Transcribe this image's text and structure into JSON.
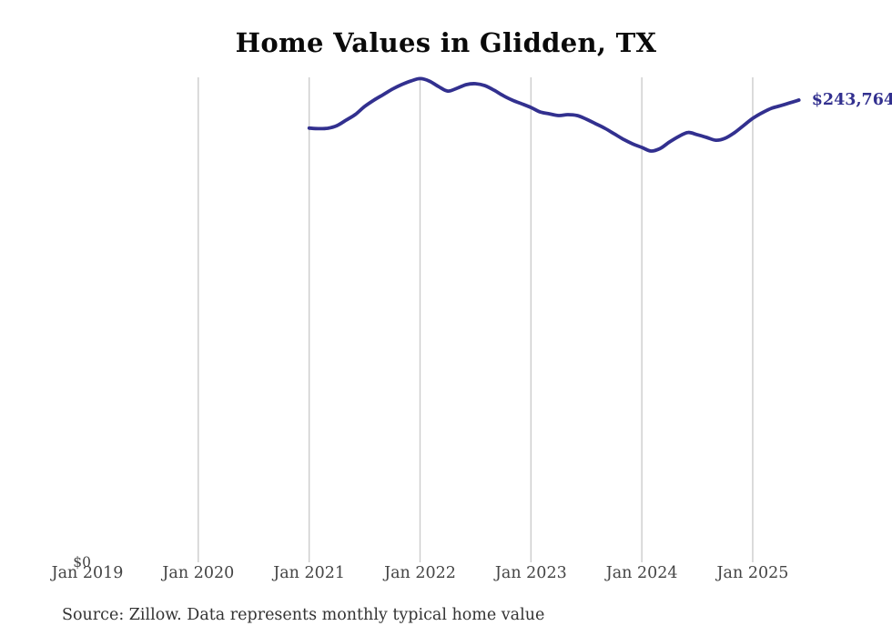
{
  "chart": {
    "title": "Home Values in Glidden, TX",
    "source": "Source: Zillow. Data represents monthly typical home value",
    "end_label": "$243,764",
    "y_axis": {
      "zero_label": "$0"
    },
    "colors": {
      "line": "#32308f",
      "end_label": "#32308f",
      "grid": "#cccccc",
      "title": "#0a0a0a",
      "axis_text": "#444444",
      "source_text": "#333333",
      "background": "#ffffff"
    }
  },
  "chart_data": {
    "type": "line",
    "title": "Home Values in Glidden, TX",
    "xlabel": "",
    "ylabel": "",
    "ylim": [
      0,
      260000
    ],
    "grid": "vertical-only",
    "legend": "none",
    "x_ticks": [
      {
        "label": "Jan 2019",
        "gridline": false
      },
      {
        "label": "Jan 2020",
        "gridline": true
      },
      {
        "label": "Jan 2021",
        "gridline": true
      },
      {
        "label": "Jan 2022",
        "gridline": true
      },
      {
        "label": "Jan 2023",
        "gridline": true
      },
      {
        "label": "Jan 2024",
        "gridline": true
      },
      {
        "label": "Jan 2025",
        "gridline": true
      }
    ],
    "annotations": [
      {
        "text": "$243,764",
        "attach": "last-point"
      },
      {
        "text": "$0",
        "attach": "y-axis-zero"
      }
    ],
    "series": [
      {
        "name": "Monthly typical home value",
        "points": [
          [
            "2021-01",
            229000
          ],
          [
            "2021-02",
            228700
          ],
          [
            "2021-03",
            228900
          ],
          [
            "2021-04",
            230300
          ],
          [
            "2021-05",
            233200
          ],
          [
            "2021-06",
            236200
          ],
          [
            "2021-07",
            240400
          ],
          [
            "2021-08",
            243700
          ],
          [
            "2021-09",
            246600
          ],
          [
            "2021-10",
            249500
          ],
          [
            "2021-11",
            251900
          ],
          [
            "2021-12",
            253800
          ],
          [
            "2022-01",
            255100
          ],
          [
            "2022-02",
            253800
          ],
          [
            "2022-03",
            250900
          ],
          [
            "2022-04",
            248500
          ],
          [
            "2022-05",
            250000
          ],
          [
            "2022-06",
            251900
          ],
          [
            "2022-07",
            252400
          ],
          [
            "2022-08",
            251400
          ],
          [
            "2022-09",
            249000
          ],
          [
            "2022-10",
            246100
          ],
          [
            "2022-11",
            243700
          ],
          [
            "2022-12",
            241800
          ],
          [
            "2023-01",
            239900
          ],
          [
            "2023-02",
            237500
          ],
          [
            "2023-03",
            236500
          ],
          [
            "2023-04",
            235600
          ],
          [
            "2023-05",
            236100
          ],
          [
            "2023-06",
            235600
          ],
          [
            "2023-07",
            233700
          ],
          [
            "2023-08",
            231300
          ],
          [
            "2023-09",
            228900
          ],
          [
            "2023-10",
            226000
          ],
          [
            "2023-11",
            223100
          ],
          [
            "2023-12",
            220700
          ],
          [
            "2024-01",
            218800
          ],
          [
            "2024-02",
            216900
          ],
          [
            "2024-03",
            218300
          ],
          [
            "2024-04",
            221700
          ],
          [
            "2024-05",
            224600
          ],
          [
            "2024-06",
            226700
          ],
          [
            "2024-07",
            225500
          ],
          [
            "2024-08",
            224100
          ],
          [
            "2024-09",
            222600
          ],
          [
            "2024-10",
            223600
          ],
          [
            "2024-11",
            226500
          ],
          [
            "2024-12",
            230300
          ],
          [
            "2025-01",
            234100
          ],
          [
            "2025-02",
            237000
          ],
          [
            "2025-03",
            239400
          ],
          [
            "2025-04",
            240800
          ],
          [
            "2025-05",
            242300
          ],
          [
            "2025-06",
            243764
          ]
        ]
      }
    ]
  }
}
